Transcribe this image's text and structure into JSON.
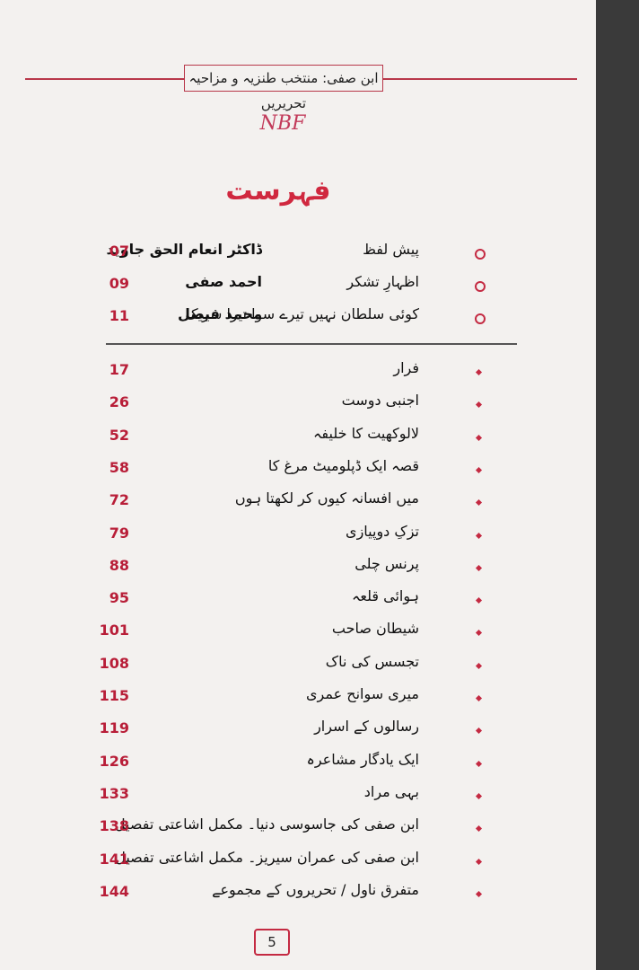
{
  "header": {
    "title": "ابن صفی: منتخب طنزیہ و مزاحیہ تحریریں",
    "logo": "NBF"
  },
  "heading": "فہرست",
  "front_matter": [
    {
      "title": "پیش لفظ",
      "author": "ڈاکٹر انعام الحق جاوید",
      "page": "07"
    },
    {
      "title": "اظہارِ تشکر",
      "author": "احمد صفی",
      "page": "09"
    },
    {
      "title": "کوئی سلطان نہیں تیرے سوا تیرا شریک",
      "author": "محمد فیصل",
      "page": "11"
    }
  ],
  "contents": [
    {
      "title": "فرار",
      "page": "17"
    },
    {
      "title": "اجنبی دوست",
      "page": "26"
    },
    {
      "title": "لالوکھیت کا خلیفہ",
      "page": "52"
    },
    {
      "title": "قصہ ایک ڈپلومیٹ مرغ کا",
      "page": "58"
    },
    {
      "title": "میں افسانہ کیوں کر لکھتا ہوں",
      "page": "72"
    },
    {
      "title": "تزکِ دوپیازی",
      "page": "79"
    },
    {
      "title": "پرنس چلی",
      "page": "88"
    },
    {
      "title": "ہوائی قلعہ",
      "page": "95"
    },
    {
      "title": "شیطان صاحب",
      "page": "101"
    },
    {
      "title": "تجسس کی ناک",
      "page": "108"
    },
    {
      "title": "میری سوانح عمری",
      "page": "115"
    },
    {
      "title": "رسالوں کے اسرار",
      "page": "119"
    },
    {
      "title": "ایک یادگار مشاعرہ",
      "page": "126"
    },
    {
      "title": "بہی مراد",
      "page": "133"
    },
    {
      "title": "ابن صفی کی جاسوسی دنیا۔ مکمل اشاعتی تفصیل",
      "page": "138"
    },
    {
      "title": "ابن صفی کی عمران سیریز۔ مکمل اشاعتی تفصیل",
      "page": "141"
    },
    {
      "title": "متفرق ناول / تحریروں کے مجموعے",
      "page": "144"
    }
  ],
  "footer": {
    "page_number": "5"
  }
}
